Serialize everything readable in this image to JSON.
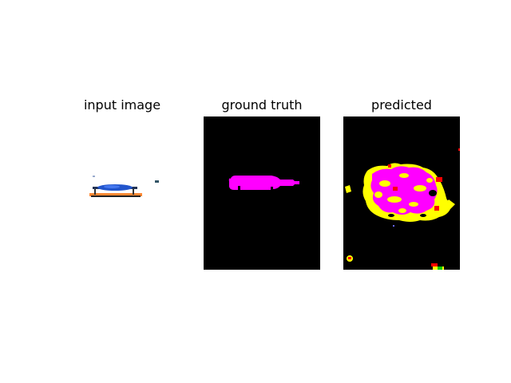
{
  "figure": {
    "panels": [
      {
        "title": "input image"
      },
      {
        "title": "ground truth"
      },
      {
        "title": "predicted"
      }
    ]
  },
  "colors": {
    "background": "#000000",
    "mask_magenta": "#ff00ff",
    "mask_yellow": "#ffff00",
    "mask_red": "#ff0000",
    "object_blue": "#2255cc",
    "object_orange": "#ff8833"
  }
}
